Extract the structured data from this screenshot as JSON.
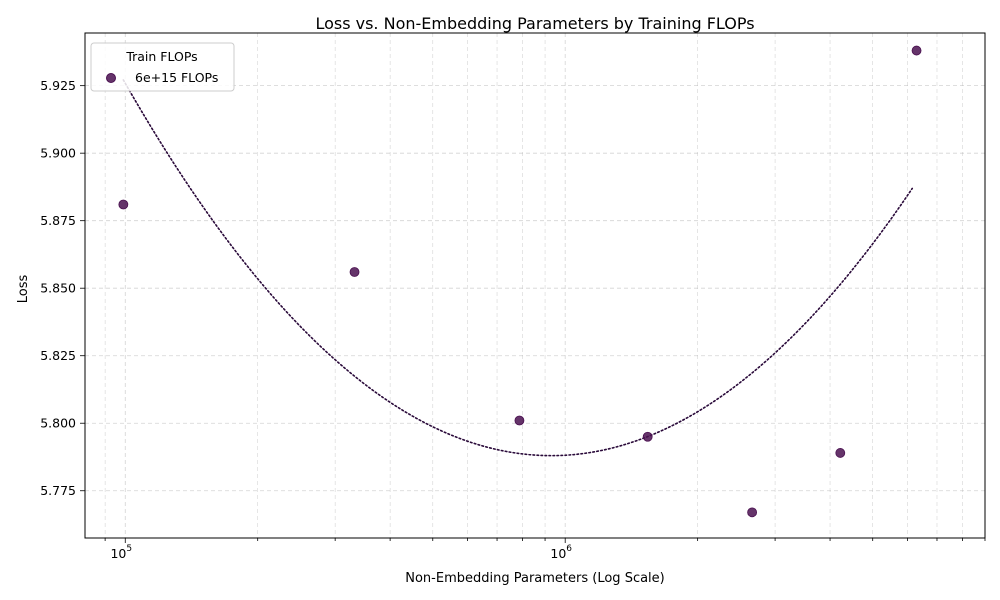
{
  "chart_data": {
    "type": "scatter",
    "title": "Loss vs. Non-Embedding Parameters by Training FLOPs",
    "xlabel": "Non-Embedding Parameters (Log Scale)",
    "ylabel": "Loss",
    "x_scale": "log",
    "xlim": [
      81000,
      9000000
    ],
    "ylim": [
      5.7575,
      5.9445
    ],
    "x_ticks": [
      {
        "value": 100000,
        "base": "10",
        "exp": "5"
      },
      {
        "value": 1000000,
        "base": "10",
        "exp": "6"
      }
    ],
    "y_ticks": [
      5.775,
      5.8,
      5.825,
      5.85,
      5.875,
      5.9,
      5.925
    ],
    "y_tick_labels": [
      "5.775",
      "5.800",
      "5.825",
      "5.850",
      "5.875",
      "5.900",
      "5.925"
    ],
    "grid": true,
    "legend": {
      "title": "Train FLOPs",
      "placement": "top-left",
      "entries": [
        "6e+15 FLOPs"
      ]
    },
    "series": [
      {
        "name": "6e+15 FLOPs",
        "color": "#4a1050",
        "points": [
          {
            "x": 99000,
            "y": 5.881
          },
          {
            "x": 332000,
            "y": 5.856
          },
          {
            "x": 787000,
            "y": 5.801
          },
          {
            "x": 1540000,
            "y": 5.795
          },
          {
            "x": 2660000,
            "y": 5.767
          },
          {
            "x": 4220000,
            "y": 5.789
          },
          {
            "x": 6290000,
            "y": 5.938
          }
        ],
        "fit": {
          "style": "dotted",
          "color": "#2a0a3a",
          "x_range": [
            99000,
            6150000
          ],
          "vertex_x": 930000,
          "vertex_y": 5.788,
          "curvature": 0.147
        }
      }
    ]
  }
}
